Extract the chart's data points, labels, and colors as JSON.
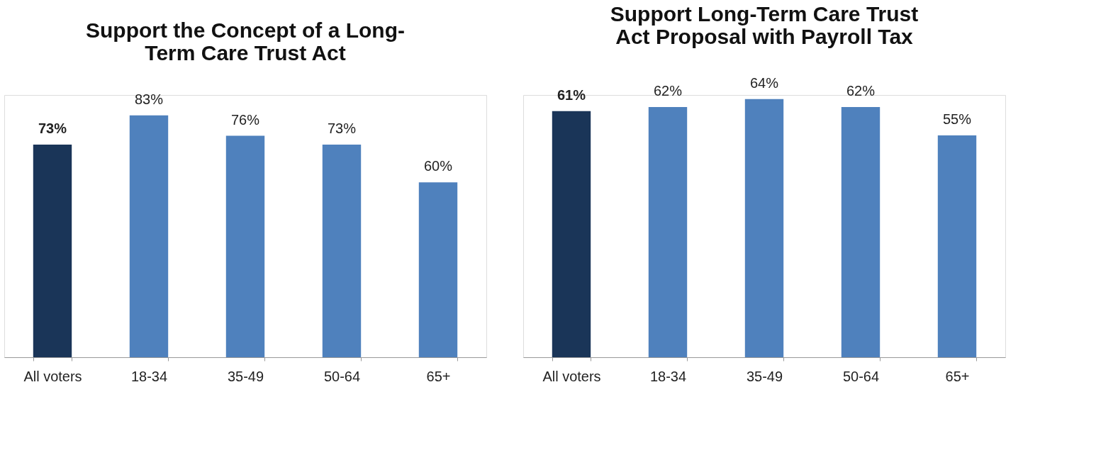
{
  "chart_data": [
    {
      "type": "bar",
      "title": "Support the Concept of a Long-Term Care Trust Act",
      "categories": [
        "All voters",
        "18-34",
        "35-49",
        "50-64",
        "65+"
      ],
      "values": [
        73,
        83,
        76,
        73,
        60
      ],
      "colors": [
        "#1a3558",
        "#4f81bd",
        "#4f81bd",
        "#4f81bd",
        "#4f81bd"
      ],
      "value_labels": [
        "73%",
        "83%",
        "76%",
        "73%",
        "60%"
      ]
    },
    {
      "type": "bar",
      "title": "Support Long-Term Care Trust Act Proposal with Payroll Tax",
      "categories": [
        "All voters",
        "18-34",
        "35-49",
        "50-64",
        "65+"
      ],
      "values": [
        61,
        62,
        64,
        62,
        55
      ],
      "colors": [
        "#1a3558",
        "#4f81bd",
        "#4f81bd",
        "#4f81bd",
        "#4f81bd"
      ],
      "value_labels": [
        "61%",
        "62%",
        "64%",
        "62%",
        "55%"
      ]
    }
  ]
}
